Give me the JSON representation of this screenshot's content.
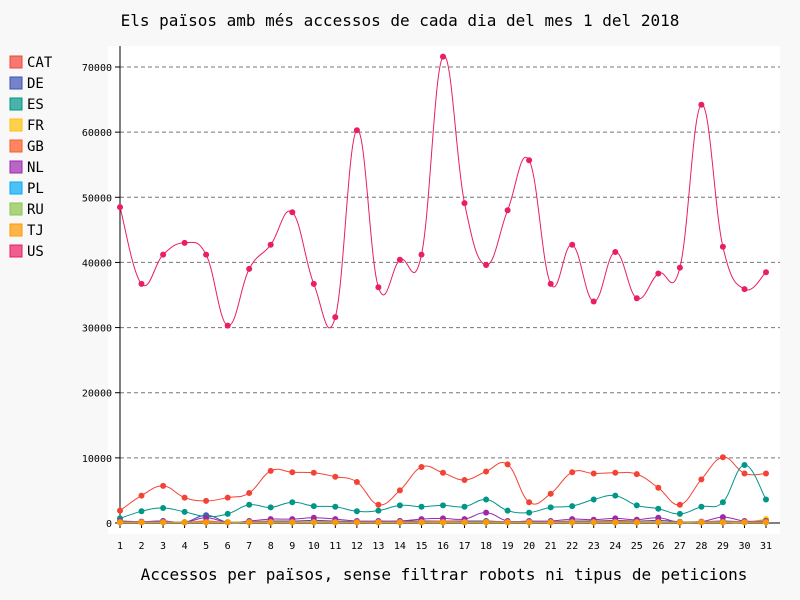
{
  "chart_data": {
    "type": "line",
    "title": "Els països amb més accessos de cada dia del mes 1 del 2018",
    "xlabel": "Accessos per països, sense filtrar robots ni tipus de peticions",
    "ylabel": "",
    "x": [
      "1",
      "2",
      "3",
      "4",
      "5",
      "6",
      "7",
      "8",
      "9",
      "10",
      "11",
      "12",
      "13",
      "14",
      "15",
      "16",
      "17",
      "18",
      "19",
      "20",
      "21",
      "22",
      "23",
      "24",
      "25",
      "26",
      "27",
      "28",
      "29",
      "30",
      "31"
    ],
    "ylim": [
      0,
      70000
    ],
    "yticks": [
      "0",
      "10000",
      "20000",
      "30000",
      "40000",
      "50000",
      "60000",
      "70000"
    ],
    "grid": true,
    "legend_position": "left",
    "series": [
      {
        "name": "CAT",
        "color": "#F44336",
        "values": [
          1900,
          4200,
          5700,
          3900,
          3400,
          3900,
          4600,
          8000,
          7800,
          7700,
          7100,
          6300,
          2800,
          5000,
          8600,
          7700,
          6600,
          7900,
          9000,
          3200,
          4500,
          7800,
          7600,
          7700,
          7500,
          5400,
          2800,
          6700,
          10100,
          7600,
          7600
        ]
      },
      {
        "name": "DE",
        "color": "#3F51B5",
        "values": [
          200,
          200,
          300,
          100,
          1200,
          100,
          200,
          300,
          300,
          400,
          300,
          200,
          200,
          300,
          300,
          300,
          300,
          300,
          200,
          200,
          200,
          300,
          300,
          400,
          300,
          400,
          200,
          200,
          300,
          200,
          300
        ]
      },
      {
        "name": "ES",
        "color": "#009688",
        "values": [
          700,
          1800,
          2300,
          1700,
          1000,
          1400,
          2800,
          2400,
          3200,
          2600,
          2500,
          1800,
          1900,
          2700,
          2500,
          2700,
          2500,
          3600,
          1900,
          1600,
          2400,
          2600,
          3600,
          4200,
          2700,
          2200,
          1400,
          2500,
          3200,
          8900,
          3600
        ]
      },
      {
        "name": "FR",
        "color": "#FFC107",
        "values": [
          100,
          100,
          100,
          100,
          100,
          100,
          100,
          100,
          100,
          100,
          100,
          100,
          100,
          100,
          100,
          100,
          100,
          100,
          100,
          100,
          100,
          100,
          100,
          100,
          100,
          100,
          100,
          100,
          100,
          100,
          600
        ]
      },
      {
        "name": "GB",
        "color": "#FF5722",
        "values": [
          300,
          200,
          200,
          100,
          300,
          100,
          200,
          200,
          200,
          200,
          200,
          100,
          200,
          200,
          200,
          300,
          200,
          200,
          200,
          200,
          200,
          200,
          200,
          300,
          200,
          200,
          100,
          200,
          200,
          200,
          200
        ]
      },
      {
        "name": "NL",
        "color": "#9C27B0",
        "values": [
          300,
          200,
          300,
          100,
          800,
          100,
          300,
          600,
          600,
          800,
          600,
          300,
          300,
          300,
          600,
          700,
          600,
          1600,
          300,
          300,
          300,
          600,
          500,
          700,
          500,
          800,
          100,
          200,
          900,
          300,
          300
        ]
      },
      {
        "name": "PL",
        "color": "#03A9F4",
        "values": [
          100,
          100,
          100,
          100,
          100,
          100,
          100,
          100,
          100,
          100,
          100,
          100,
          100,
          100,
          100,
          100,
          100,
          100,
          100,
          100,
          100,
          100,
          100,
          100,
          100,
          100,
          100,
          100,
          100,
          100,
          100
        ]
      },
      {
        "name": "RU",
        "color": "#8BC34A",
        "values": [
          100,
          100,
          100,
          100,
          100,
          100,
          100,
          100,
          100,
          100,
          100,
          100,
          100,
          100,
          100,
          100,
          100,
          100,
          100,
          100,
          100,
          100,
          100,
          100,
          100,
          100,
          100,
          100,
          100,
          100,
          100
        ]
      },
      {
        "name": "TJ",
        "color": "#FF9800",
        "values": [
          100,
          100,
          100,
          100,
          100,
          100,
          100,
          100,
          100,
          100,
          100,
          100,
          100,
          100,
          100,
          100,
          100,
          100,
          100,
          100,
          100,
          100,
          100,
          100,
          100,
          100,
          100,
          100,
          100,
          100,
          100
        ]
      },
      {
        "name": "US",
        "color": "#E91E63",
        "values": [
          48500,
          36700,
          41200,
          43000,
          41200,
          30300,
          39000,
          42700,
          47700,
          36700,
          31600,
          60300,
          36200,
          40400,
          41200,
          71600,
          49100,
          39600,
          48000,
          55700,
          36700,
          42700,
          34000,
          41600,
          34500,
          38300,
          39200,
          64200,
          42400,
          35900,
          38500
        ]
      }
    ]
  }
}
